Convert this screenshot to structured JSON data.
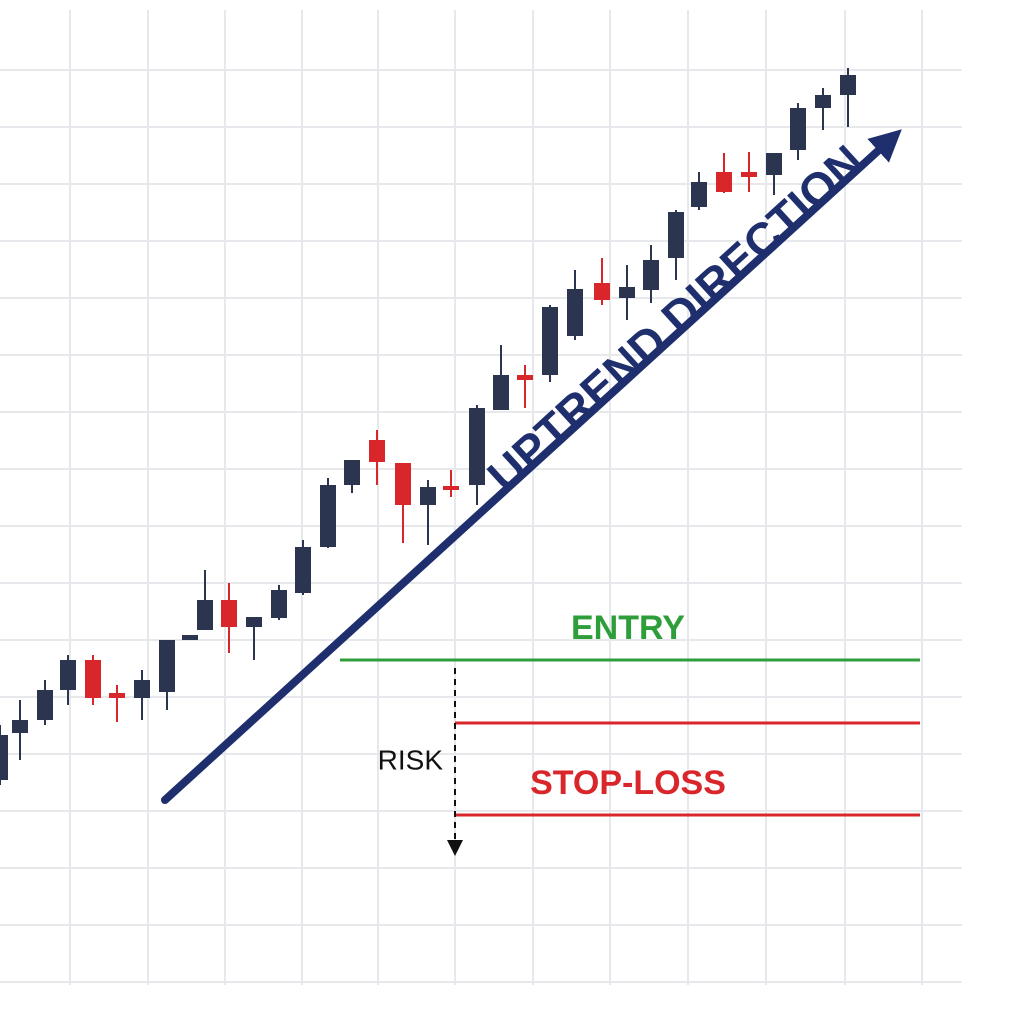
{
  "chart_data": {
    "type": "candlestick",
    "x": [
      0,
      20,
      45,
      68,
      93,
      117,
      142,
      167,
      190,
      205,
      229,
      254,
      279,
      303,
      328,
      352,
      377,
      403,
      428,
      451,
      477,
      501,
      525,
      550,
      575,
      602,
      627,
      651,
      676,
      699,
      724,
      749,
      774,
      798,
      823,
      848
    ],
    "open": [
      244,
      291,
      304,
      334,
      364,
      331,
      326,
      332,
      384,
      394,
      424,
      397,
      406,
      431,
      477,
      539,
      584,
      561,
      519,
      538,
      539,
      614,
      649,
      649,
      688,
      741,
      726,
      734,
      766,
      817,
      852,
      852,
      849,
      874,
      916,
      929
    ],
    "high": [
      299,
      324,
      344,
      369,
      369,
      339,
      354,
      384,
      389,
      454,
      441,
      407,
      439,
      484,
      546,
      564,
      594,
      561,
      544,
      554,
      619,
      679,
      659,
      719,
      754,
      766,
      759,
      779,
      814,
      852,
      871,
      872,
      871,
      921,
      936,
      956
    ],
    "low": [
      239,
      264,
      299,
      319,
      319,
      302,
      304,
      314,
      384,
      394,
      371,
      364,
      404,
      429,
      476,
      531,
      539,
      481,
      479,
      527,
      519,
      614,
      616,
      642,
      684,
      719,
      704,
      721,
      744,
      814,
      831,
      832,
      829,
      864,
      894,
      897
    ],
    "close": [
      289,
      304,
      334,
      364,
      326,
      326,
      344,
      384,
      389,
      424,
      397,
      407,
      434,
      477,
      539,
      564,
      562,
      519,
      537,
      534,
      616,
      649,
      644,
      717,
      735,
      724,
      737,
      764,
      812,
      842,
      832,
      847,
      871,
      916,
      929,
      949
    ],
    "up_color": "#2b3550",
    "down_color": "#d9262b",
    "xlim": [
      0,
      1024
    ],
    "ylim": [
      0,
      1024
    ],
    "xticks": [
      70,
      148,
      225,
      302,
      378,
      455,
      533,
      610,
      688,
      766,
      845,
      922
    ],
    "yticks": [
      42,
      99,
      156,
      213,
      270,
      327,
      384,
      441,
      498,
      555,
      612,
      669,
      726,
      783,
      840,
      897,
      954
    ],
    "grid": true,
    "trend": {
      "label": "UPTREND DIRECTION",
      "x": [
        165,
        890
      ],
      "y": [
        224,
        884
      ],
      "color": "#1f2f6e"
    },
    "levels": [
      {
        "label": "ENTRY",
        "value": 364,
        "x_start": 340,
        "color": "#2e9e3a"
      },
      {
        "label": null,
        "value": 301,
        "x_start": 455,
        "color": "#d9262b"
      },
      {
        "label": "STOP-LOSS",
        "value": 209,
        "x_start": 455,
        "color": "#d9262b"
      }
    ],
    "risk": {
      "label": "RISK",
      "from": 356,
      "to": 170,
      "x": 455
    }
  }
}
